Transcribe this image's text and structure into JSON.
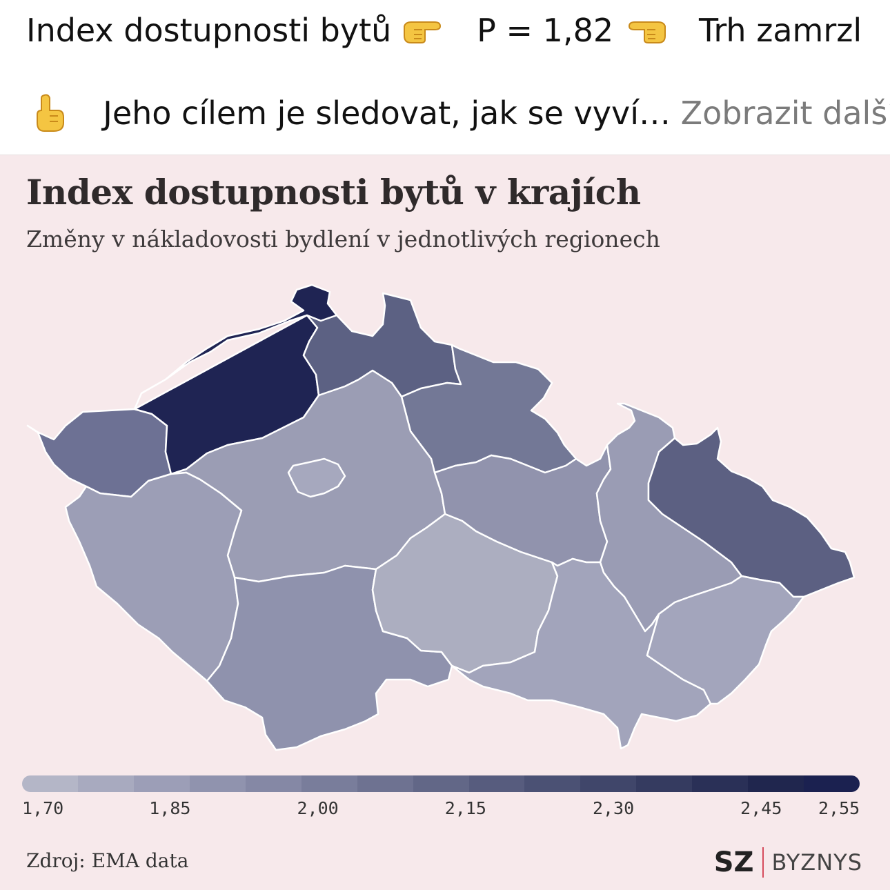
{
  "post": {
    "line1_part1": "Index dostupnosti bytů",
    "line1_part2": "P = 1,82",
    "line1_part3": "Trh zamrzl",
    "line2_text": "Jeho cílem je sledovat, jak se vyví…",
    "more_link": "Zobrazit další",
    "icons": [
      "hand-pointing-right-icon",
      "hand-pointing-left-icon",
      "hand-pointing-up-icon"
    ]
  },
  "map": {
    "title": "Index dostupnosti bytů v krajích",
    "subtitle": "Změny v nákladovosti bydlení v jednotlivých regionech",
    "source": "Zdroj: EMA data",
    "brand": {
      "mark": "SZ",
      "name": "BYZNYS"
    },
    "colors": {
      "background": "#f7e9eb",
      "border": "#ffffff",
      "low": "#b2b5c6",
      "high": "#1c2150"
    },
    "scale_min": 1.7,
    "scale_max": 2.55,
    "legend_ticks": [
      "1,70",
      "1,85",
      "2,00",
      "2,15",
      "2,30",
      "2,45",
      "2,55"
    ],
    "legend_tick_values": [
      1.7,
      1.85,
      2.0,
      2.15,
      2.3,
      2.45,
      2.55
    ],
    "regions": [
      {
        "id": "karlovarsky",
        "color": "#6d7194"
      },
      {
        "id": "ustecky",
        "color": "#1f2453"
      },
      {
        "id": "liberecky",
        "color": "#5c6183"
      },
      {
        "id": "kralovehradecky",
        "color": "#737896"
      },
      {
        "id": "stredocesky",
        "color": "#9b9db4"
      },
      {
        "id": "praha",
        "color": "#a6a8be"
      },
      {
        "id": "plzensky",
        "color": "#9c9eb6"
      },
      {
        "id": "jihocesky",
        "color": "#8f92ad"
      },
      {
        "id": "vysocina",
        "color": "#acaec0"
      },
      {
        "id": "pardubicky",
        "color": "#9193ad"
      },
      {
        "id": "olomoucky",
        "color": "#9a9cb4"
      },
      {
        "id": "moravskoslezsky",
        "color": "#5c6082"
      },
      {
        "id": "jihomoravsky",
        "color": "#a2a4bb"
      },
      {
        "id": "zlinsky",
        "color": "#a3a5bc"
      }
    ]
  }
}
